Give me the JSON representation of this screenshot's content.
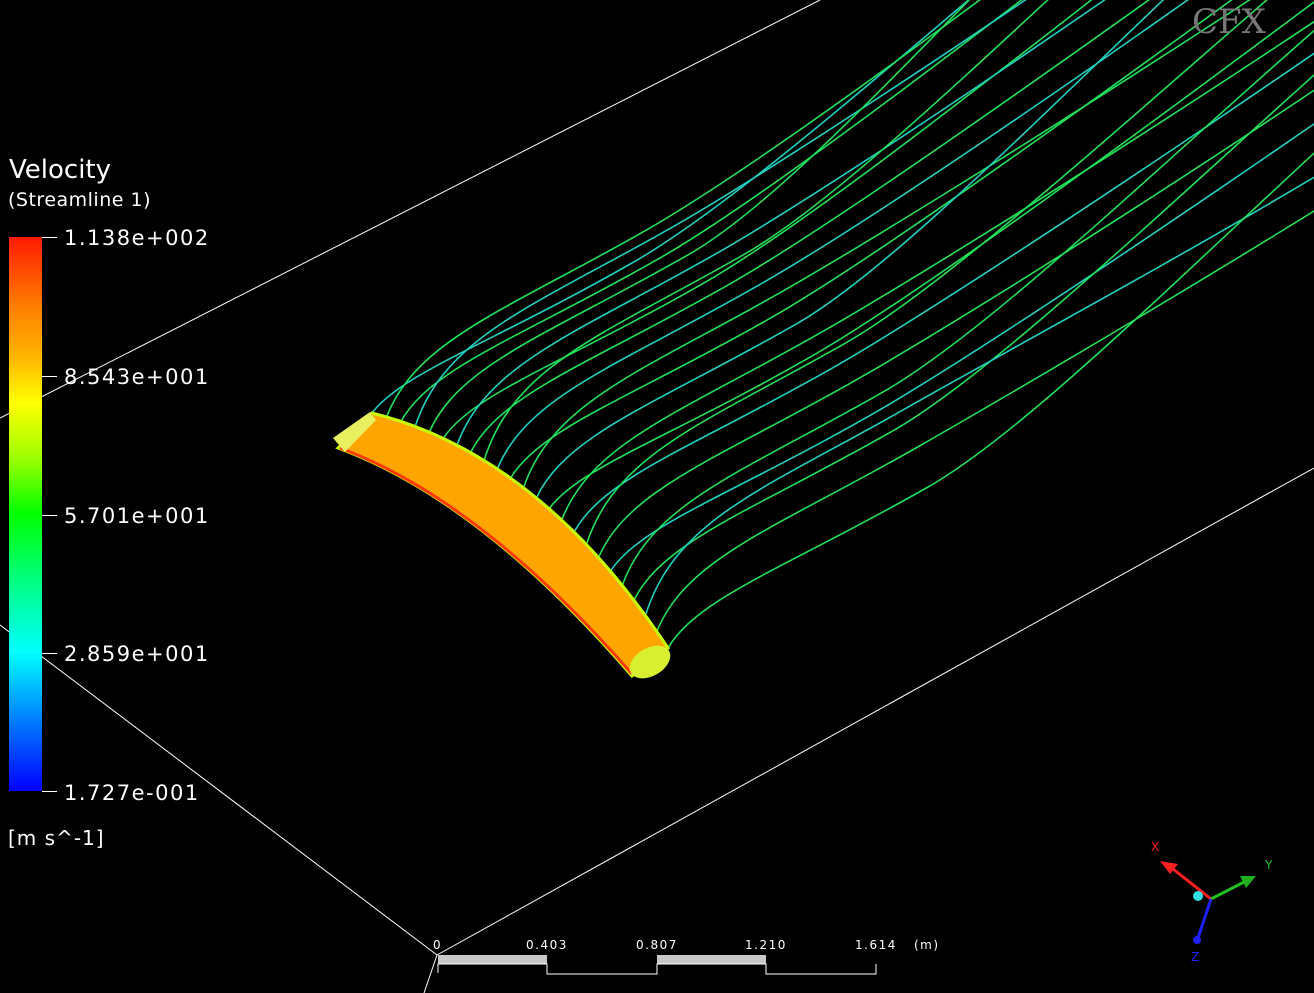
{
  "legend": {
    "title": "Velocity",
    "subtitle": "(Streamline  1)",
    "ticks": [
      "1.138e+002",
      "8.543e+001",
      "5.701e+001",
      "2.859e+001",
      "1.727e-001"
    ],
    "units": "[m  s^-1]",
    "colormap_top": "#ff1a00",
    "colormap_bottom": "#0000ff"
  },
  "scale_bar": {
    "labels": [
      "0",
      "0.403",
      "0.807",
      "1.210",
      "1.614"
    ],
    "unit": "(m)"
  },
  "axes": {
    "x": "X",
    "y": "Y",
    "z": "Z",
    "x_color": "#ff2020",
    "y_color": "#20c020",
    "z_color": "#2020ff"
  },
  "logo": "CFX",
  "colors": {
    "wing": "#ffa500",
    "streamline": "#22e05a",
    "domain_edges": "#ffffff"
  }
}
